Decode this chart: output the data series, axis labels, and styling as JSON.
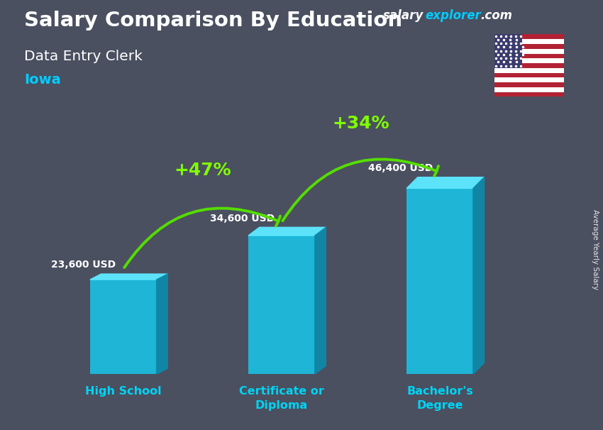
{
  "title": "Salary Comparison By Education",
  "subtitle": "Data Entry Clerk",
  "location": "Iowa",
  "ylabel": "Average Yearly Salary",
  "categories": [
    "High School",
    "Certificate or\nDiploma",
    "Bachelor's\nDegree"
  ],
  "values": [
    23600,
    34600,
    46400
  ],
  "labels": [
    "23,600 USD",
    "34,600 USD",
    "46,400 USD"
  ],
  "bar_color_face": "#1bbee0",
  "bar_color_top": "#5de8ff",
  "bar_color_side": "#0d8aab",
  "pct_labels": [
    "+47%",
    "+34%"
  ],
  "title_color": "#ffffff",
  "subtitle_color": "#ffffff",
  "location_color": "#00ccff",
  "xtick_color": "#00d4f5",
  "bar_label_color": "#ffffff",
  "pct_color": "#7fff00",
  "arrow_color": "#55dd00",
  "brand_salary": "salary",
  "brand_explorer": "explorer",
  "brand_dot_com": ".com",
  "brand_color_salary": "#ffffff",
  "brand_color_explorer": "#00ccff",
  "brand_color_dotcom": "#ffffff",
  "bg_color": "#4a5060",
  "figsize": [
    8.5,
    6.06
  ],
  "dpi": 100,
  "ylim": [
    0,
    58000
  ]
}
